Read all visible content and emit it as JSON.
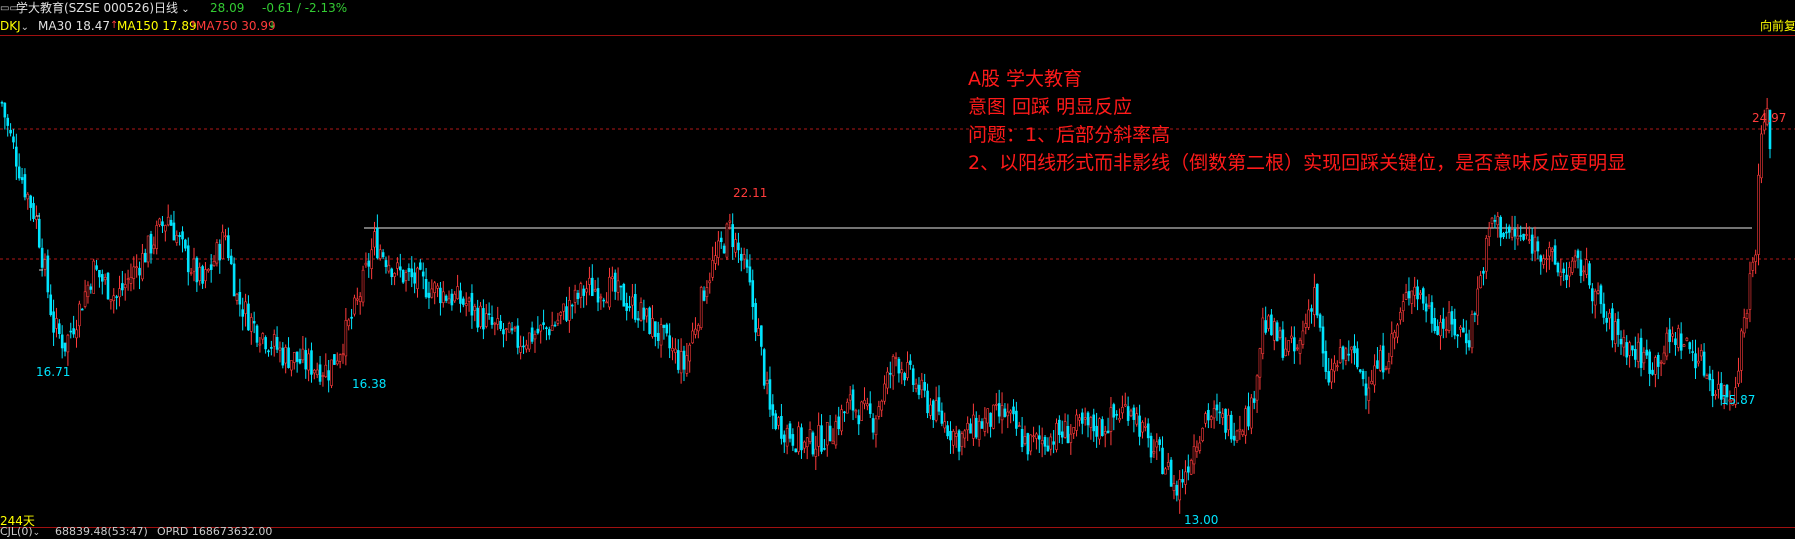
{
  "header": {
    "menu_icon": "menu-icon",
    "stock_name": "学大教育(SZSE 000526)",
    "period": "日线",
    "price": "28.09",
    "change": "-0.61 / -2.13%",
    "colors": {
      "up": "#ff3b3b",
      "down": "#00e5ff",
      "green": "#33cc33",
      "yellow": "#ffff00",
      "white": "#e0e0e0"
    }
  },
  "indicators": {
    "name": "DKJ",
    "ma30": "MA30 18.47",
    "ma30_arrow": "↑",
    "ma150": "MA150 17.89",
    "ma150_arrow": "↑",
    "ma750": "MA750 30.99",
    "ma750_arrow": "↓",
    "adjust": "向前复"
  },
  "annotation": {
    "line1": "A股 学大教育",
    "line2": "意图 回踩 明显反应",
    "line3": "问题：1、后部分斜率高",
    "line4": "2、以阳线形式而非影线（倒数第二根）实现回踩关键位，是否意味反应更明显"
  },
  "price_labels": {
    "high_mid": "22.11",
    "high_right": "24.97",
    "low_left": "16.71",
    "low_left2": "16.38",
    "low_bottom": "13.00",
    "low_right": "15.87"
  },
  "footer": {
    "days": "244天",
    "volume_label": "CJL(0)",
    "volume_value": "68839.48(53:47)",
    "oprd": "OPRD 168673632.00"
  },
  "chart_data": {
    "type": "candlestick",
    "price_range": [
      12.5,
      26.2
    ],
    "horizontal_level": 22.11,
    "dashed_levels": [
      24.97,
      20.3
    ],
    "extremes": [
      {
        "label": "16.71",
        "value": 16.71
      },
      {
        "label": "16.38",
        "value": 16.38
      },
      {
        "label": "22.11",
        "value": 22.11
      },
      {
        "label": "13.00",
        "value": 13.0
      },
      {
        "label": "15.87",
        "value": 15.87
      },
      {
        "label": "24.97",
        "value": 24.97
      }
    ],
    "anchors": [
      [
        0,
        25.5
      ],
      [
        2,
        24.7
      ],
      [
        4,
        24.1
      ],
      [
        8,
        22.8
      ],
      [
        12,
        21.8
      ],
      [
        18,
        18.4
      ],
      [
        22,
        17.8
      ],
      [
        26,
        18.7
      ],
      [
        32,
        20.2
      ],
      [
        40,
        19.3
      ],
      [
        50,
        20.7
      ],
      [
        58,
        21.9
      ],
      [
        64,
        20.6
      ],
      [
        70,
        19.7
      ],
      [
        78,
        21.3
      ],
      [
        82,
        19.3
      ],
      [
        88,
        18.4
      ],
      [
        98,
        17.5
      ],
      [
        106,
        17.2
      ],
      [
        114,
        17.0
      ],
      [
        118,
        17.7
      ],
      [
        124,
        19.1
      ],
      [
        130,
        21.1
      ],
      [
        138,
        20.1
      ],
      [
        150,
        19.6
      ],
      [
        162,
        19.1
      ],
      [
        172,
        18.3
      ],
      [
        180,
        17.9
      ],
      [
        192,
        18.4
      ],
      [
        204,
        19.6
      ],
      [
        212,
        19.6
      ],
      [
        222,
        18.9
      ],
      [
        232,
        17.8
      ],
      [
        238,
        17.1
      ],
      [
        246,
        19.9
      ],
      [
        254,
        21.5
      ],
      [
        260,
        20.0
      ],
      [
        264,
        18.1
      ],
      [
        268,
        15.6
      ],
      [
        272,
        15.2
      ],
      [
        280,
        14.6
      ],
      [
        288,
        14.9
      ],
      [
        296,
        15.9
      ],
      [
        304,
        15.4
      ],
      [
        312,
        17.4
      ],
      [
        318,
        16.6
      ],
      [
        326,
        15.6
      ],
      [
        334,
        14.8
      ],
      [
        342,
        15.3
      ],
      [
        350,
        15.6
      ],
      [
        358,
        14.6
      ],
      [
        364,
        14.8
      ],
      [
        374,
        15.1
      ],
      [
        384,
        15.2
      ],
      [
        394,
        15.9
      ],
      [
        400,
        14.6
      ],
      [
        406,
        14.0
      ],
      [
        410,
        13.1
      ],
      [
        414,
        14.1
      ],
      [
        420,
        15.6
      ],
      [
        430,
        15.2
      ],
      [
        436,
        15.7
      ],
      [
        440,
        18.5
      ],
      [
        446,
        17.9
      ],
      [
        452,
        17.5
      ],
      [
        458,
        19.6
      ],
      [
        462,
        16.6
      ],
      [
        466,
        17.2
      ],
      [
        470,
        17.6
      ],
      [
        476,
        16.6
      ],
      [
        484,
        17.6
      ],
      [
        492,
        19.8
      ],
      [
        500,
        18.6
      ],
      [
        512,
        18.1
      ],
      [
        520,
        21.8
      ],
      [
        526,
        21.3
      ],
      [
        536,
        21.0
      ],
      [
        544,
        20.1
      ],
      [
        552,
        20.3
      ],
      [
        560,
        18.5
      ],
      [
        568,
        17.7
      ],
      [
        576,
        17.2
      ],
      [
        584,
        18.1
      ],
      [
        592,
        17.4
      ],
      [
        598,
        16.4
      ],
      [
        604,
        16.2
      ],
      [
        608,
        18.6
      ],
      [
        612,
        21.1
      ],
      [
        614,
        24.6
      ],
      [
        616,
        24.97
      ],
      [
        617,
        24.4
      ]
    ]
  }
}
